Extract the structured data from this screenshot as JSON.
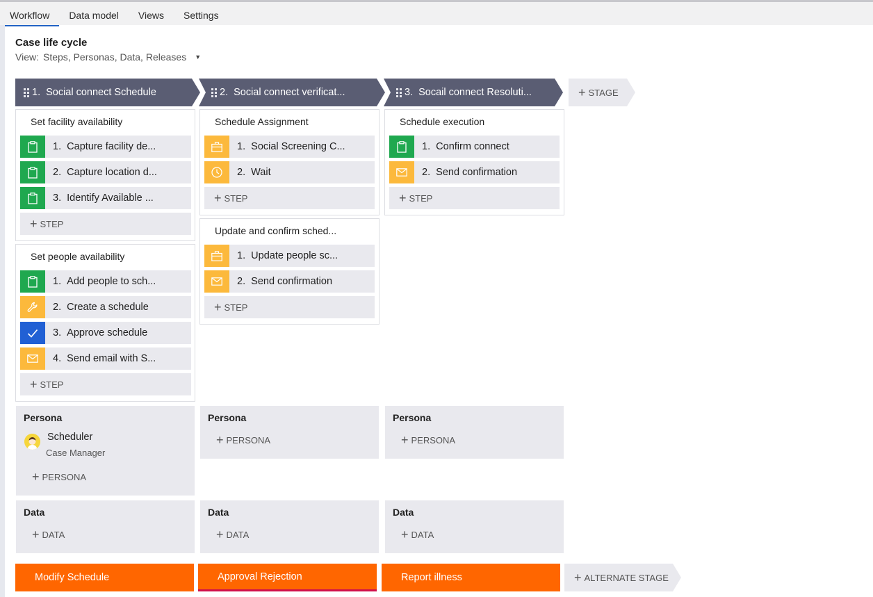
{
  "tabs": [
    "Workflow",
    "Data model",
    "Views",
    "Settings"
  ],
  "header": {
    "title": "Case life cycle",
    "view_label": "View:",
    "view_value": "Steps, Personas, Data, Releases"
  },
  "stages": [
    {
      "number": "1.",
      "name": "Social connect Schedule"
    },
    {
      "number": "2.",
      "name": "Social connect verificat..."
    },
    {
      "number": "3.",
      "name": "Socail connect Resoluti..."
    }
  ],
  "add_stage_label": "STAGE",
  "add_step_label": "STEP",
  "processes": {
    "s1p1": {
      "title": "Set facility availability",
      "steps": [
        {
          "num": "1.",
          "label": "Capture facility de...",
          "icon": "clipboard-icon"
        },
        {
          "num": "2.",
          "label": "Capture location d...",
          "icon": "clipboard-icon"
        },
        {
          "num": "3.",
          "label": "Identify Available ...",
          "icon": "clipboard-icon"
        }
      ]
    },
    "s1p2": {
      "title": "Set people availability",
      "steps": [
        {
          "num": "1.",
          "label": "Add people to sch...",
          "icon": "clipboard-icon"
        },
        {
          "num": "2.",
          "label": "Create a schedule",
          "icon": "wrench-icon"
        },
        {
          "num": "3.",
          "label": "Approve schedule",
          "icon": "check-icon"
        },
        {
          "num": "4.",
          "label": "Send email with S...",
          "icon": "mail-icon"
        }
      ]
    },
    "s2p1": {
      "title": "Schedule Assignment",
      "steps": [
        {
          "num": "1.",
          "label": "Social Screening C...",
          "icon": "briefcase-icon"
        },
        {
          "num": "2.",
          "label": "Wait",
          "icon": "clock-icon"
        }
      ]
    },
    "s2p2": {
      "title": "Update and confirm sched...",
      "steps": [
        {
          "num": "1.",
          "label": "Update people sc...",
          "icon": "briefcase-icon"
        },
        {
          "num": "2.",
          "label": "Send confirmation",
          "icon": "mail-icon"
        }
      ]
    },
    "s3p1": {
      "title": "Schedule execution",
      "steps": [
        {
          "num": "1.",
          "label": "Confirm connect",
          "icon": "clipboard-icon"
        },
        {
          "num": "2.",
          "label": "Send confirmation",
          "icon": "mail-icon"
        }
      ]
    }
  },
  "persona": {
    "heading": "Persona",
    "add_label": "PERSONA",
    "stage1_name": "Scheduler",
    "stage1_role": "Case Manager"
  },
  "data_panel": {
    "heading": "Data",
    "add_label": "DATA"
  },
  "alternate_stages": [
    "Modify Schedule",
    "Approval Rejection",
    "Report illness"
  ],
  "add_alternate_stage_label": "ALTERNATE STAGE",
  "colors": {
    "stage": "#5a5d73",
    "step_green": "#1fa84f",
    "step_yellow": "#fcb93c",
    "step_blue": "#2160d4",
    "alternate": "#ff6600",
    "tab_active": "#2162c5"
  }
}
